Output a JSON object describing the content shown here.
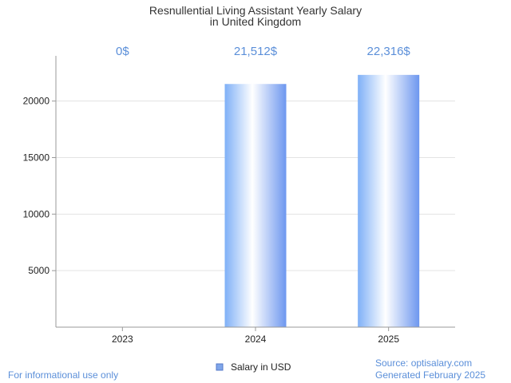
{
  "chart_data": {
    "type": "bar",
    "title": [
      "Resnullential Living Assistant Yearly Salary",
      "in United Kingdom"
    ],
    "categories": [
      "2023",
      "2024",
      "2025"
    ],
    "series": [
      {
        "name": "Salary in USD",
        "values": [
          0,
          21512,
          22316
        ]
      }
    ],
    "data_labels": [
      "0$",
      "21,512$",
      "22,316$"
    ],
    "yticks": [
      5000,
      10000,
      15000,
      20000
    ],
    "ylim": [
      0,
      24000
    ],
    "grid": true,
    "legend_position": "bottom-center"
  },
  "colors": {
    "bar_gradient_light": "#ffffff",
    "bar_gradient_mid": "#a6c8f7",
    "bar_gradient_dark": "#6d97ef",
    "label_color": "#5b8fd9",
    "grid_color": "#e3e3e3",
    "axis_color": "#999999"
  },
  "footer": {
    "left": "For informational use only",
    "source": "Source: optisalary.com",
    "generated": "Generated February 2025"
  }
}
